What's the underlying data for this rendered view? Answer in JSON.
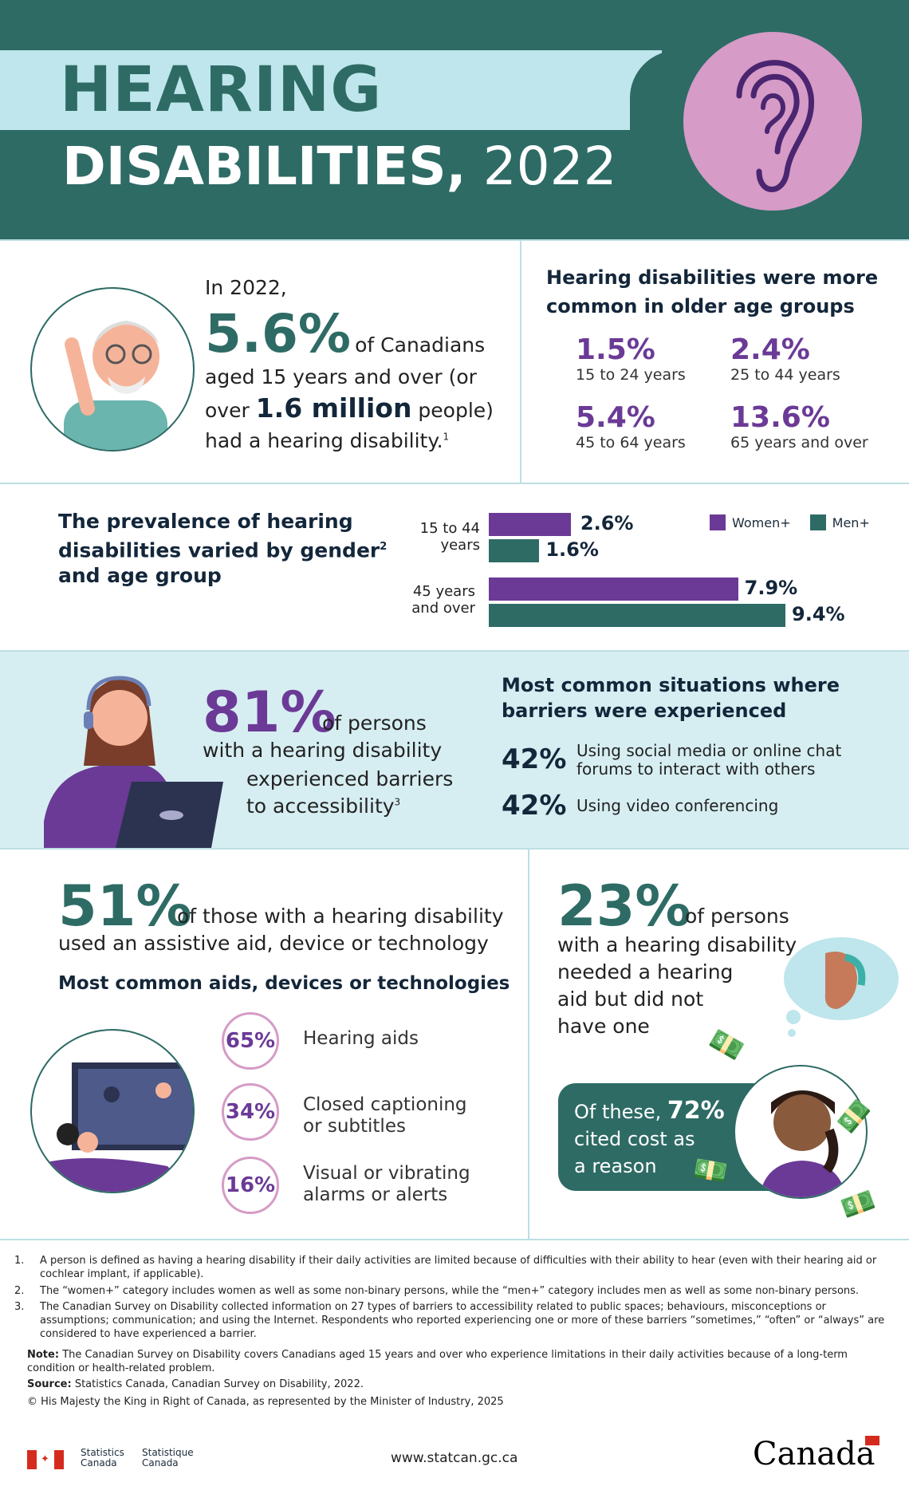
{
  "header": {
    "title_line1": "HEARING",
    "title_line2_bold": "DISABILITIES,",
    "title_year": "2022"
  },
  "overview": {
    "intro": "In 2022,",
    "big_pct": "5.6%",
    "after_pct": "of Canadians",
    "line2": "aged 15 years and over (or",
    "line3_pre": "over",
    "line3_bold": "1.6 million",
    "line3_post": "people)",
    "line4": "had a hearing disability.",
    "footnote_ref": "1"
  },
  "age_groups": {
    "title": "Hearing disabilities were more common in older age groups",
    "items": [
      {
        "value": "1.5%",
        "label": "15 to 24 years"
      },
      {
        "value": "2.4%",
        "label": "25 to 44 years"
      },
      {
        "value": "5.4%",
        "label": "45 to 64 years"
      },
      {
        "value": "13.6%",
        "label": "65 years and over"
      }
    ]
  },
  "gender": {
    "title_l1": "The prevalence of hearing",
    "title_l2": "disabilities varied by gender",
    "title_sup": "2",
    "title_l3": "and age group"
  },
  "chart_data": {
    "type": "bar",
    "orientation": "horizontal",
    "categories": [
      "15 to 44 years",
      "45 years and over"
    ],
    "series": [
      {
        "name": "Women+",
        "color": "#6b3a96",
        "values": [
          2.6,
          7.9
        ],
        "labels": [
          "2.6%",
          "7.9%"
        ]
      },
      {
        "name": "Men+",
        "color": "#2e6b65",
        "values": [
          1.6,
          9.4
        ],
        "labels": [
          "1.6%",
          "9.4%"
        ]
      }
    ],
    "category_labels": [
      [
        "15 to 44",
        "years"
      ],
      [
        "45 years",
        "and over"
      ]
    ],
    "legend": "top-right",
    "xlim": [
      0,
      9.4
    ],
    "grid": false
  },
  "barriers": {
    "pct": "81%",
    "l1": "of persons",
    "l2": "with a hearing disability",
    "l3": "experienced barriers",
    "l4": "to accessibility",
    "sup": "3",
    "title_l1": "Most common situations where",
    "title_l2": "barriers were experienced",
    "items": [
      {
        "value": "42%",
        "l1": "Using social media or online chat",
        "l2": "forums to interact with others"
      },
      {
        "value": "42%",
        "l1": "Using video conferencing",
        "l2": ""
      }
    ]
  },
  "aids": {
    "pct": "51%",
    "l1": "of those with a hearing disability",
    "l2": "used an assistive aid, device or technology",
    "subtitle": "Most common aids, devices or technologies",
    "items": [
      {
        "value": "65%",
        "l1": "Hearing aids",
        "l2": ""
      },
      {
        "value": "34%",
        "l1": "Closed captioning",
        "l2": "or subtitles"
      },
      {
        "value": "16%",
        "l1": "Visual or vibrating",
        "l2": "alarms or alerts"
      }
    ]
  },
  "need": {
    "pct": "23%",
    "l1": "of persons",
    "l2": "with a hearing disability",
    "l3": "needed a hearing",
    "l4": "aid but did not",
    "l5": "have one",
    "cost_pre": "Of these,",
    "cost_pct": "72%",
    "cost_l2": "cited cost as",
    "cost_l3": "a reason"
  },
  "footnotes": {
    "n1": "A person is defined as having a hearing disability if their daily activities are limited because of difficulties with their ability to hear (even with their hearing aid or cochlear implant, if applicable).",
    "n2": "The “women+” category includes women as well as some non-binary persons, while the “men+” category includes men as well as some non-binary persons.",
    "n3": "The Canadian Survey on Disability collected information on 27 types of barriers to accessibility related to public spaces; behaviours, misconceptions or assumptions; communication; and using the Internet. Respondents who reported experiencing one or more of these barriers “sometimes,” “often” or “always” are considered to have experienced a barrier.",
    "note_label": "Note:",
    "note": "The Canadian Survey on Disability covers Canadians aged 15 years and over who experience limitations in their daily activities because of a long-term condition or health-related problem.",
    "source_label": "Source:",
    "source": "Statistics Canada, Canadian Survey on Disability, 2022.",
    "copyright": "© His Majesty the King in Right of Canada, as represented by the Minister of Industry, 2025"
  },
  "footer": {
    "statcan_en": [
      "Statistics",
      "Canada"
    ],
    "statcan_fr": [
      "Statistique",
      "Canada"
    ],
    "url": "www.statcan.gc.ca",
    "wordmark": "Canada"
  },
  "colors": {
    "teal": "#2e6b65",
    "light_blue": "#bee6ec",
    "purple": "#6b3a96",
    "pink": "#d69bc6"
  }
}
